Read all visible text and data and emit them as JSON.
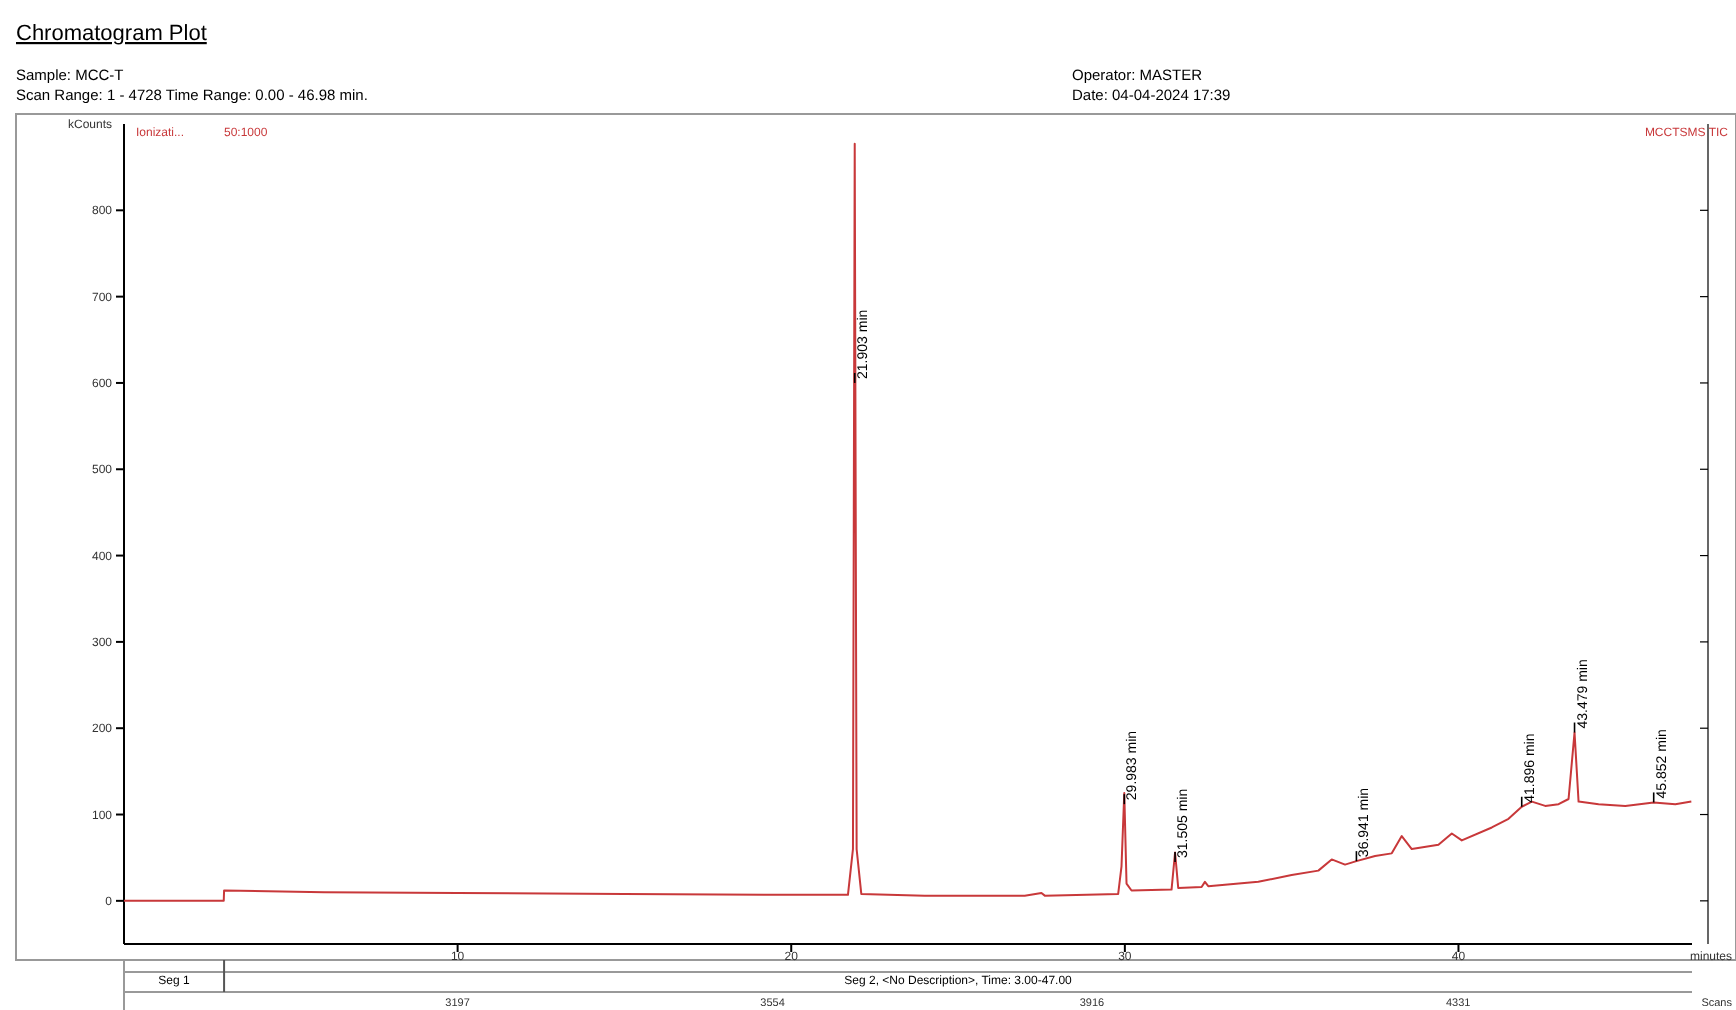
{
  "chart_data": {
    "type": "line",
    "title": "Chromatogram Plot",
    "xlabel": "minutes",
    "ylabel": "kCounts",
    "x2label": "Scans",
    "xlim": [
      0,
      47
    ],
    "xticks": [
      10,
      20,
      30,
      40
    ],
    "ylim": [
      -50,
      900
    ],
    "yticks": [
      0,
      100,
      200,
      300,
      400,
      500,
      600,
      700,
      800
    ],
    "x2lim": [
      2819,
      4596
    ],
    "x2ticks": [
      3197,
      3554,
      3916,
      4331
    ],
    "grid": false,
    "marker": "none",
    "line_style": "solid",
    "series": [
      {
        "name": "MCCTSMS TIC",
        "color": "#c8383a",
        "x": [
          0,
          2.99,
          3.0,
          6,
          10,
          15,
          20,
          21.7,
          21.85,
          21.903,
          21.96,
          22.1,
          24,
          27,
          27.5,
          27.6,
          29.8,
          29.9,
          29.983,
          30.05,
          30.2,
          31.4,
          31.505,
          31.6,
          32.3,
          32.4,
          32.5,
          34,
          35,
          35.8,
          36.2,
          36.6,
          36.941,
          37.5,
          38.0,
          38.3,
          38.6,
          39.4,
          39.8,
          40.1,
          41,
          41.5,
          41.896,
          42.2,
          42.6,
          43.0,
          43.3,
          43.479,
          43.6,
          44.2,
          45,
          45.852,
          46.5,
          46.98
        ],
        "values": [
          0,
          0,
          12,
          10,
          9,
          8,
          7,
          7,
          60,
          877,
          60,
          8,
          6,
          6,
          9,
          6,
          8,
          40,
          125,
          20,
          12,
          13,
          56,
          15,
          16,
          22,
          17,
          22,
          30,
          35,
          48,
          42,
          46,
          52,
          55,
          75,
          60,
          65,
          78,
          70,
          85,
          95,
          109,
          115,
          110,
          112,
          118,
          195,
          115,
          112,
          110,
          114,
          112,
          115
        ]
      }
    ],
    "annotations": [
      "Sample: MCC-T",
      "Scan Range: 1 - 4728 Time Range: 0.00 - 46.98 min.",
      "Operator: MASTER",
      "Date: 04-04-2024 17:39",
      "Seg 1",
      "Seg 2, <No Description>, Time: 3.00-47.00",
      "Ionizati...",
      "50:1000",
      {
        "text": "21.903 min",
        "x": 21.903,
        "y": 600
      },
      {
        "text": "29.983 min",
        "x": 29.983,
        "y": 112
      },
      {
        "text": "31.505 min",
        "x": 31.505,
        "y": 45
      },
      {
        "text": "36.941 min",
        "x": 36.941,
        "y": 46
      },
      {
        "text": "41.896 min",
        "x": 41.896,
        "y": 109
      },
      {
        "text": "43.479 min",
        "x": 43.479,
        "y": 195
      },
      {
        "text": "45.852 min",
        "x": 45.852,
        "y": 114
      }
    ]
  }
}
